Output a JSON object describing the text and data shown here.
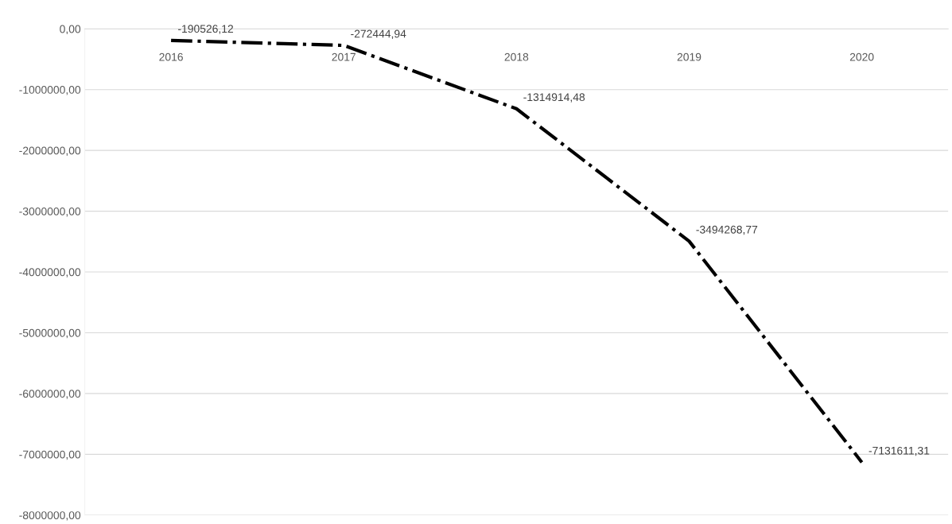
{
  "chart_data": {
    "type": "line",
    "categories": [
      "2016",
      "2017",
      "2018",
      "2019",
      "2020"
    ],
    "series": [
      {
        "color": "#000000",
        "values": [
          -190526.12,
          -272444.94,
          -1314914.48,
          -3494268.77,
          -7131611.31
        ],
        "value_labels": [
          "-190526,12",
          "-272444,94",
          "-1314914,48",
          "-3494268,77",
          "-7131611,31"
        ]
      }
    ],
    "ylim": [
      -8000000,
      0
    ],
    "yticks": [
      {
        "value": 0,
        "label": "0,00"
      },
      {
        "value": -1000000,
        "label": "-1000000,00"
      },
      {
        "value": -2000000,
        "label": "-2000000,00"
      },
      {
        "value": -3000000,
        "label": "-3000000,00"
      },
      {
        "value": -4000000,
        "label": "-4000000,00"
      },
      {
        "value": -5000000,
        "label": "-5000000,00"
      },
      {
        "value": -6000000,
        "label": "-6000000,00"
      },
      {
        "value": -7000000,
        "label": "-7000000,00"
      },
      {
        "value": -8000000,
        "label": "-8000000,00"
      }
    ],
    "grid": "y",
    "line_style": "dashdot",
    "marker": "none"
  }
}
